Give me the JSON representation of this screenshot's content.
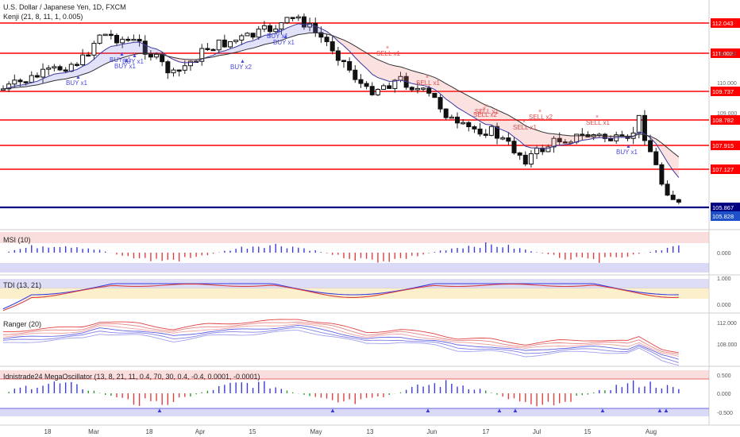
{
  "header": {
    "title": "U.S. Dollar / Japanese Yen, 1D, FXCM",
    "indicator": "Kenji (21, 8, 11, 1, 0.005)"
  },
  "panes": {
    "msi": "MSI (10)",
    "tdi": "TDI (13, 21)",
    "ranger": "Ranger (20)",
    "mega": "Idnistrade24 MegaOscillator (13, 8, 21, 11, 0.4, 70, 30, 0.4, -0.4, 0.0001, -0.0001)"
  },
  "chart_data": {
    "type": "candlestick",
    "price_levels": [
      {
        "value": "112.043",
        "color": "#ff0000"
      },
      {
        "value": "111.002",
        "color": "#ff0000"
      },
      {
        "value": "109.737",
        "color": "#ff0000"
      },
      {
        "value": "108.782",
        "color": "#ff0000"
      },
      {
        "value": "107.915",
        "color": "#ff0000"
      },
      {
        "value": "107.127",
        "color": "#ff0000"
      },
      {
        "value": "105.867",
        "color": "#000080"
      },
      {
        "value": "105.828",
        "color": "#1e50c8"
      }
    ],
    "price_ticks": [
      "111.000",
      "110.000",
      "109.000"
    ],
    "x_ticks": [
      "18",
      "Mar",
      "18",
      "Apr",
      "15",
      "May",
      "13",
      "Jun",
      "17",
      "Jul",
      "15",
      "Aug"
    ],
    "signals": [
      {
        "label": "BUY x1",
        "type": "buy"
      },
      {
        "label": "BUY x1",
        "type": "buy"
      },
      {
        "label": "BUY x1",
        "type": "buy"
      },
      {
        "label": "BUY x1",
        "type": "buy"
      },
      {
        "label": "BUY x2",
        "type": "buy"
      },
      {
        "label": "BUY x1",
        "type": "buy"
      },
      {
        "label": "BUY x1",
        "type": "buy"
      },
      {
        "label": "BUY x1",
        "type": "buy"
      },
      {
        "label": "SELL x1",
        "type": "sell"
      },
      {
        "label": "SELL x1",
        "type": "sell"
      },
      {
        "label": "SELL x1",
        "type": "sell"
      },
      {
        "label": "SELL x1",
        "type": "sell"
      },
      {
        "label": "SELL x2",
        "type": "sell"
      },
      {
        "label": "SELL x1",
        "type": "sell"
      },
      {
        "label": "SELL x2",
        "type": "sell"
      }
    ],
    "msi": {
      "ticks": [
        "0.000"
      ]
    },
    "tdi": {
      "ticks": [
        "1.000",
        "0.000"
      ]
    },
    "ranger": {
      "ticks": [
        "112.000",
        "108.000"
      ]
    },
    "mega": {
      "ticks": [
        "0.500",
        "0.000",
        "-0.500"
      ]
    }
  }
}
